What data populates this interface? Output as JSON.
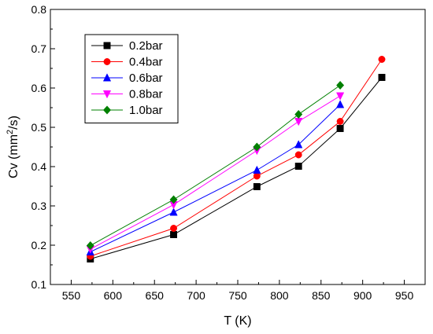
{
  "chart_data": {
    "type": "line",
    "xlabel": "T (K)",
    "ylabel_prefix": "Cv (mm",
    "ylabel_sup": "2",
    "ylabel_suffix": "/s)",
    "xlim": [
      525,
      975
    ],
    "ylim": [
      0.1,
      0.8
    ],
    "xticks": [
      550,
      600,
      650,
      700,
      750,
      800,
      850,
      900,
      950
    ],
    "yticks": [
      0.1,
      0.2,
      0.3,
      0.4,
      0.5,
      0.6,
      0.7,
      0.8
    ],
    "grid": false,
    "legend_position": "top-left",
    "series": [
      {
        "name": "0.2bar",
        "color": "#000000",
        "marker": "square",
        "x": [
          573,
          673,
          773,
          823,
          873,
          923
        ],
        "y": [
          0.165,
          0.227,
          0.349,
          0.401,
          0.497,
          0.627
        ]
      },
      {
        "name": "0.4bar",
        "color": "#ff0000",
        "marker": "circle",
        "x": [
          573,
          673,
          773,
          823,
          873,
          923
        ],
        "y": [
          0.172,
          0.243,
          0.376,
          0.43,
          0.515,
          0.673
        ]
      },
      {
        "name": "0.6bar",
        "color": "#0000ff",
        "marker": "triangle-up",
        "x": [
          573,
          673,
          773,
          823,
          873
        ],
        "y": [
          0.183,
          0.284,
          0.391,
          0.456,
          0.558
        ]
      },
      {
        "name": "0.8bar",
        "color": "#ff00ff",
        "marker": "triangle-down",
        "x": [
          573,
          673,
          773,
          823,
          873
        ],
        "y": [
          0.19,
          0.303,
          0.441,
          0.515,
          0.58
        ]
      },
      {
        "name": "1.0bar",
        "color": "#008000",
        "marker": "diamond",
        "x": [
          573,
          673,
          773,
          823,
          873
        ],
        "y": [
          0.199,
          0.316,
          0.45,
          0.533,
          0.607
        ]
      }
    ]
  }
}
